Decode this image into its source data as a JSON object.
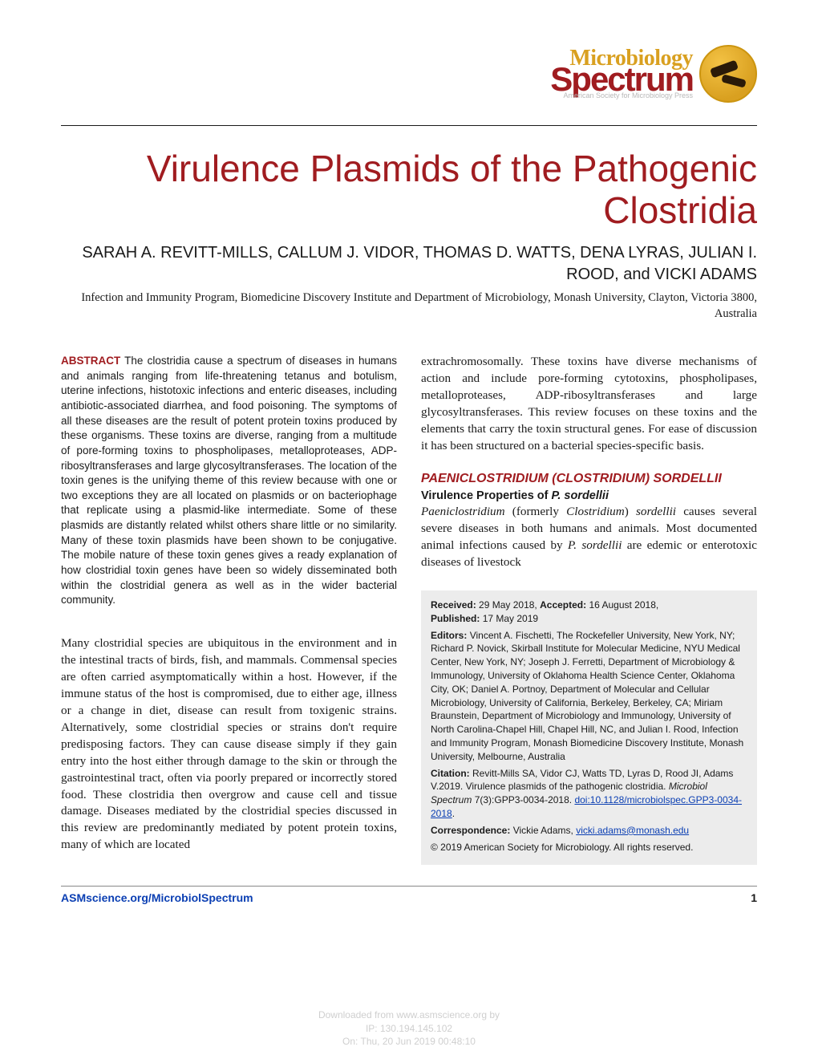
{
  "brand": {
    "line1": "Microbiology",
    "line2": "Spectrum",
    "subline": "American Society for Microbiology Press",
    "colors": {
      "accent_gold": "#d9a020",
      "accent_red": "#a01c20",
      "text_muted": "#b8b8b8"
    }
  },
  "title": "Virulence Plasmids of the Pathogenic Clostridia",
  "authors": "SARAH A. REVITT-MILLS, CALLUM J. VIDOR, THOMAS D. WATTS, DENA LYRAS, JULIAN I. ROOD, and VICKI ADAMS",
  "affiliation": "Infection and Immunity Program, Biomedicine Discovery Institute and Department of Microbiology, Monash University, Clayton, Victoria 3800, Australia",
  "abstract": {
    "label": "ABSTRACT",
    "text": "The clostridia cause a spectrum of diseases in humans and animals ranging from life-threatening tetanus and botulism, uterine infections, histotoxic infections and enteric diseases, including antibiotic-associated diarrhea, and food poisoning. The symptoms of all these diseases are the result of potent protein toxins produced by these organisms. These toxins are diverse, ranging from a multitude of pore-forming toxins to phospholipases, metalloproteases, ADP-ribosyltransferases and large glycosyltransferases. The location of the toxin genes is the unifying theme of this review because with one or two exceptions they are all located on plasmids or on bacteriophage that replicate using a plasmid-like intermediate. Some of these plasmids are distantly related whilst others share little or no similarity. Many of these toxin plasmids have been shown to be conjugative. The mobile nature of these toxin genes gives a ready explanation of how clostridial toxin genes have been so widely disseminated both within the clostridial genera as well as in the wider bacterial community."
  },
  "intro_para": "Many clostridial species are ubiquitous in the environment and in the intestinal tracts of birds, fish, and mammals. Commensal species are often carried asymptomatically within a host. However, if the immune status of the host is compromised, due to either age, illness or a change in diet, disease can result from toxigenic strains. Alternatively, some clostridial species or strains don't require predisposing factors. They can cause disease simply if they gain entry into the host either through damage to the skin or through the gastrointestinal tract, often via poorly prepared or incorrectly stored food. These clostridia then overgrow and cause cell and tissue damage. Diseases mediated by the clostridial species discussed in this review are predominantly mediated by potent protein toxins, many of which are located",
  "col2_para": "extrachromosomally. These toxins have diverse mechanisms of action and include pore-forming cytotoxins, phospholipases, metalloproteases, ADP-ribosyltransferases and large glycosyltransferases. This review focuses on these toxins and the elements that carry the toxin structural genes. For ease of discussion it has been structured on a bacterial species-specific basis.",
  "section": {
    "heading": "PAENICLOSTRIDIUM (CLOSTRIDIUM) SORDELLII",
    "sub_prefix": "Virulence Properties of ",
    "sub_ital": "P. sordellii",
    "body_parts": {
      "p1": "Paeniclostridium",
      "p2": " (formerly ",
      "p3": "Clostridium",
      "p4": ") ",
      "p5": "sordellii",
      "p6": " causes several severe diseases in both humans and animals. Most documented animal infections caused by ",
      "p7": "P. sordellii",
      "p8": " are edemic or enterotoxic diseases of livestock"
    }
  },
  "infobox": {
    "received_label": "Received:",
    "received": "29 May 2018,",
    "accepted_label": "Accepted:",
    "accepted": "16 August 2018,",
    "published_label": "Published:",
    "published": "17 May 2019",
    "editors_label": "Editors:",
    "editors": "Vincent A. Fischetti, The Rockefeller University, New York, NY; Richard P. Novick, Skirball Institute for Molecular Medicine, NYU Medical Center, New York, NY; Joseph J. Ferretti, Department of Microbiology & Immunology, University of Oklahoma Health Science Center, Oklahoma City, OK; Daniel A. Portnoy, Department of Molecular and Cellular Microbiology, University of California, Berkeley, Berkeley, CA; Miriam Braunstein, Department of Microbiology and Immunology, University of North Carolina-Chapel Hill, Chapel Hill, NC, and Julian I. Rood, Infection and Immunity Program, Monash Biomedicine Discovery Institute, Monash University, Melbourne, Australia",
    "citation_label": "Citation:",
    "citation_text": "Revitt-Mills SA, Vidor CJ, Watts TD, Lyras D, Rood JI, Adams V.2019. Virulence plasmids of the pathogenic clostridia. ",
    "citation_journal": "Microbiol Spectrum",
    "citation_rest": " 7(3):GPP3-0034-2018. ",
    "doi_text": "doi:10.1128/microbiolspec.GPP3-0034-2018",
    "doi_suffix": ".",
    "corr_label": "Correspondence:",
    "corr_text": "Vickie Adams, ",
    "corr_email": "vicki.adams@monash.edu",
    "copyright": "© 2019 American Society for Microbiology. All rights reserved."
  },
  "footer": {
    "journal_link": "ASMscience.org/MicrobiolSpectrum",
    "page": "1",
    "stamp_l1": "Downloaded from www.asmscience.org by",
    "stamp_l2": "IP:  130.194.145.102",
    "stamp_l3": "On: Thu, 20 Jun 2019 00:48:10"
  }
}
